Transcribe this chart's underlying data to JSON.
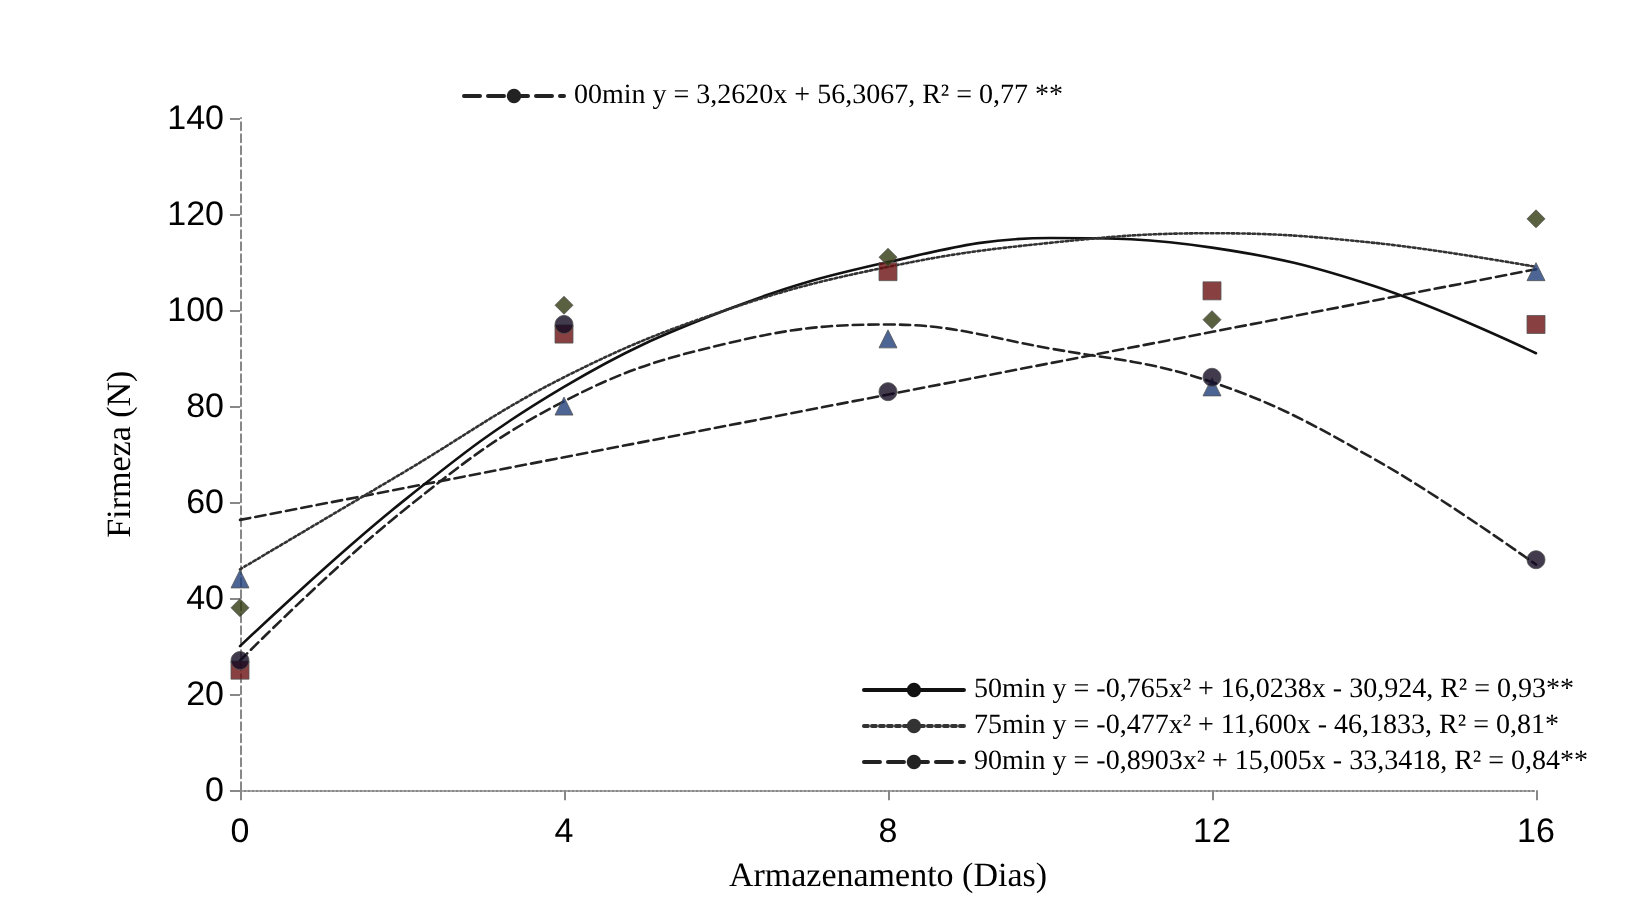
{
  "chart_data": {
    "type": "scatter",
    "xlabel": "Armazenamento (Dias)",
    "ylabel": "Firmeza (N)",
    "xlim": [
      0,
      16
    ],
    "xticks": [
      0,
      4,
      8,
      12,
      16
    ],
    "ylim": [
      0,
      140
    ],
    "yticks": [
      0,
      20,
      40,
      60,
      80,
      100,
      120,
      140
    ],
    "grid": false,
    "legend": "right",
    "x": [
      0,
      4,
      8,
      12,
      16
    ],
    "series": [
      {
        "color": "#1f3f7a",
        "marker": "triangle",
        "values": [
          44,
          80,
          94,
          84,
          108
        ]
      },
      {
        "color": "#6b1010",
        "marker": "square",
        "values": [
          25,
          95,
          108,
          104,
          97
        ]
      },
      {
        "color": "#2f3a10",
        "marker": "diamond",
        "values": [
          38,
          101,
          111,
          98,
          119
        ]
      },
      {
        "color": "#120a20",
        "marker": "circle",
        "values": [
          27,
          97,
          83,
          86,
          48
        ]
      },
      {
        "type": "line",
        "name": "00min y = 3,2620x + 56,3067, R² = 0,77 **",
        "color": "#222222",
        "line_style": "dashed",
        "x": [
          0,
          16
        ],
        "values": [
          56.3,
          108.5
        ]
      },
      {
        "type": "line",
        "name": "50min y = -0,765x² + 16,0238x - 30,924, R² = 0,93**",
        "color": "#111111",
        "line_style": "solid",
        "x": [
          0,
          2,
          4,
          6,
          8,
          10,
          12,
          14,
          16
        ],
        "values": [
          30,
          60,
          84,
          100,
          110,
          115,
          113,
          105,
          91
        ]
      },
      {
        "type": "line",
        "name": "75min y = -0,477x² + 11,600x - 46,1833, R² = 0,81*",
        "color": "#333333",
        "line_style": "dotted",
        "x": [
          0,
          2,
          4,
          6,
          8,
          10,
          12,
          14,
          16
        ],
        "values": [
          46,
          66,
          86,
          100,
          109,
          114,
          116,
          114,
          109
        ]
      },
      {
        "type": "line",
        "name": "90min y = -0,8903x² + 15,005x - 33,3418, R² = 0,84**",
        "color": "#222222",
        "line_style": "dashed",
        "x": [
          0,
          2,
          4,
          6,
          8,
          10,
          12,
          14,
          16
        ],
        "values": [
          27,
          58,
          81,
          93,
          97,
          92,
          85,
          69,
          47
        ]
      }
    ]
  }
}
